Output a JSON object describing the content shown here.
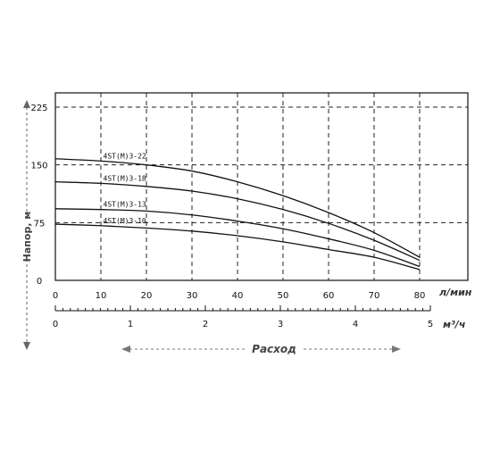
{
  "chart_data": {
    "type": "line",
    "x_unit_top": "л/мин",
    "x_unit_bottom": "м³/ч",
    "ylabel": "Напор, м",
    "xlabel": "Расход",
    "xlim": [
      0,
      80
    ],
    "ylim": [
      0,
      225
    ],
    "y_ticks": [
      0,
      75,
      150,
      225
    ],
    "x_ticks": [
      0,
      10,
      20,
      30,
      40,
      50,
      60,
      70,
      80
    ],
    "x2_ticks": [
      0,
      1,
      2,
      3,
      4,
      5
    ],
    "grid": "dashed",
    "series": [
      {
        "name": "4ST(M)3-22",
        "x": [
          0,
          10,
          20,
          30,
          40,
          50,
          60,
          70,
          80
        ],
        "y": [
          158,
          155,
          150,
          142,
          128,
          110,
          88,
          62,
          30
        ]
      },
      {
        "name": "4ST(M)3-18",
        "x": [
          0,
          10,
          20,
          30,
          40,
          50,
          60,
          70,
          80
        ],
        "y": [
          128,
          126,
          122,
          116,
          106,
          92,
          74,
          52,
          26
        ]
      },
      {
        "name": "4ST(M)3-13",
        "x": [
          0,
          10,
          20,
          30,
          40,
          50,
          60,
          70,
          80
        ],
        "y": [
          93,
          92,
          90,
          85,
          77,
          67,
          54,
          39,
          18
        ]
      },
      {
        "name": "4ST(M)3-10",
        "x": [
          0,
          10,
          20,
          30,
          40,
          50,
          60,
          70,
          80
        ],
        "y": [
          73,
          71,
          68,
          64,
          58,
          50,
          40,
          30,
          14
        ]
      }
    ]
  }
}
